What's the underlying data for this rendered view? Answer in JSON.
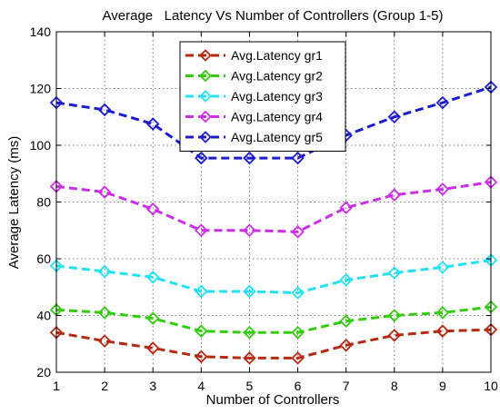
{
  "chart_data": {
    "type": "line",
    "title": "Average   Latency Vs Number of Controllers (Group 1-5)",
    "xlabel": "Number of Controllers",
    "ylabel": "Average Latency (ms)",
    "x": [
      1,
      2,
      3,
      4,
      5,
      6,
      7,
      8,
      9,
      10
    ],
    "xlim": [
      1,
      10
    ],
    "ylim": [
      20,
      140
    ],
    "xticks": [
      "1",
      "2",
      "3",
      "4",
      "5",
      "6",
      "7",
      "8",
      "9",
      "10"
    ],
    "yticks": [
      "20",
      "40",
      "60",
      "80",
      "100",
      "120",
      "140"
    ],
    "grid": true,
    "legend_position": "top-center",
    "series": [
      {
        "name": "Avg.Latency gr1",
        "color": "#b52a12",
        "values": [
          34,
          31,
          28.5,
          25.5,
          25,
          25,
          29.5,
          33,
          34.5,
          35
        ]
      },
      {
        "name": "Avg.Latency gr2",
        "color": "#33cc0d",
        "values": [
          42,
          41,
          39,
          34.5,
          34,
          34,
          38,
          40,
          41,
          43
        ]
      },
      {
        "name": "Avg.Latency gr3",
        "color": "#22e1f2",
        "values": [
          57.5,
          55.5,
          53.5,
          48.5,
          48.5,
          48,
          52.5,
          55,
          57,
          59.5
        ]
      },
      {
        "name": "Avg.Latency gr4",
        "color": "#cc2ee8",
        "values": [
          85.5,
          83.5,
          77.5,
          70,
          70,
          69.5,
          78,
          82.5,
          84.5,
          87
        ]
      },
      {
        "name": "Avg.Latency gr5",
        "color": "#1c1ccc",
        "values": [
          115,
          112.5,
          107.5,
          95.5,
          95.5,
          95.5,
          103.5,
          110,
          115,
          120.5
        ]
      }
    ]
  }
}
